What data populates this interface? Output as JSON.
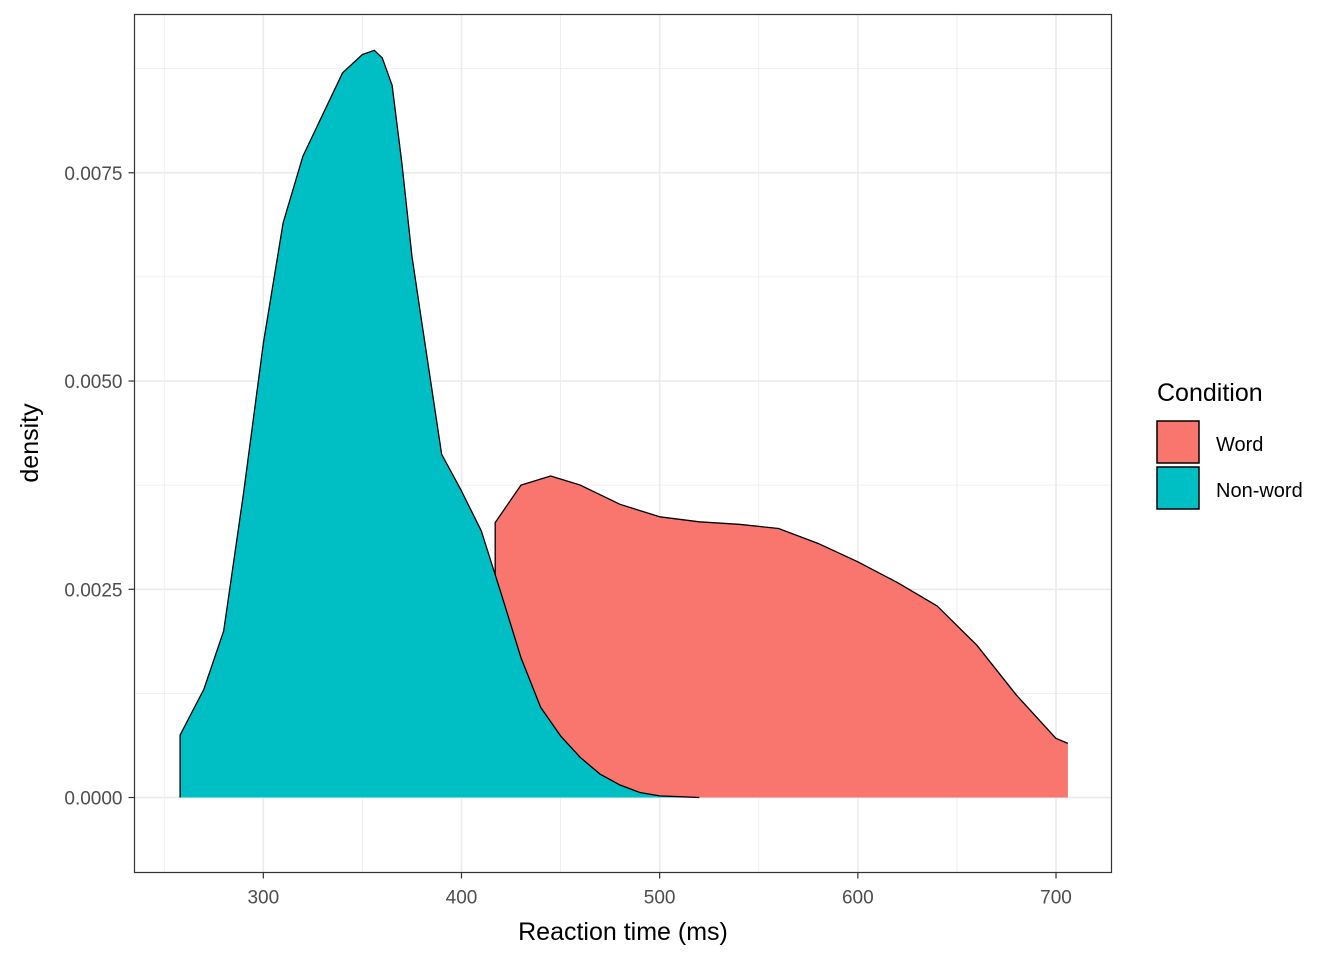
{
  "chart_data": {
    "type": "area",
    "subtype": "density",
    "xlabel": "Reaction time (ms)",
    "ylabel": "density",
    "xlim": [
      235,
      728
    ],
    "ylim": [
      -0.0009,
      0.0094
    ],
    "x_ticks": [
      300,
      400,
      500,
      600,
      700
    ],
    "y_ticks": [
      0.0,
      0.0025,
      0.005,
      0.0075
    ],
    "y_tick_labels": [
      "0.0000",
      "0.0025",
      "0.0050",
      "0.0075"
    ],
    "grid": true,
    "legend": {
      "title": "Condition",
      "position": "right",
      "entries": [
        {
          "label": "Word",
          "color": "#F8766D"
        },
        {
          "label": "Non-word",
          "color": "#00BFC4"
        }
      ]
    },
    "series": [
      {
        "name": "Word",
        "color": "#F8766D",
        "x": [
          417,
          430,
          445,
          460,
          480,
          500,
          520,
          540,
          560,
          580,
          600,
          620,
          640,
          660,
          680,
          700,
          706
        ],
        "y": [
          0.0033,
          0.00375,
          0.00386,
          0.00375,
          0.00352,
          0.00337,
          0.00331,
          0.00328,
          0.00323,
          0.00305,
          0.00283,
          0.00258,
          0.0023,
          0.00183,
          0.00123,
          0.00071,
          0.00065
        ]
      },
      {
        "name": "Non-word",
        "color": "#00BFC4",
        "x": [
          258,
          270,
          280,
          290,
          300,
          310,
          320,
          330,
          340,
          350,
          356,
          360,
          365,
          370,
          375,
          380,
          390,
          400,
          410,
          420,
          430,
          440,
          450,
          460,
          470,
          480,
          490,
          500,
          510,
          520
        ],
        "y": [
          0.00075,
          0.0013,
          0.002,
          0.00365,
          0.00545,
          0.0069,
          0.0077,
          0.0082,
          0.0087,
          0.00892,
          0.00897,
          0.00888,
          0.00855,
          0.0076,
          0.0065,
          0.0057,
          0.00412,
          0.00368,
          0.0032,
          0.00245,
          0.00168,
          0.00108,
          0.00074,
          0.00048,
          0.00028,
          0.00015,
          6e-05,
          2e-05,
          1e-05,
          0.0
        ]
      }
    ]
  }
}
